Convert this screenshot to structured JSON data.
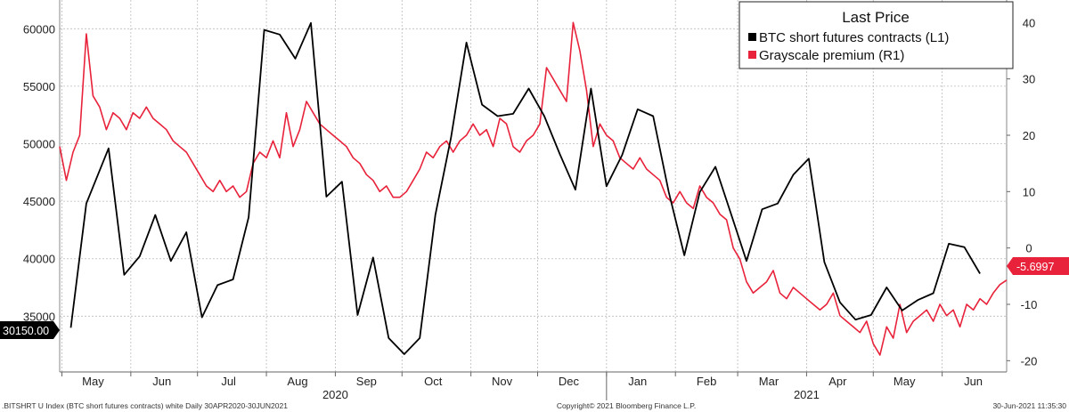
{
  "chart_data": {
    "type": "line",
    "legend": {
      "title": "Last Price",
      "placement": "top-right",
      "entries": [
        {
          "label": "BTC short futures contracts  (L1)",
          "color": "#000000"
        },
        {
          "label": "Grayscale premium  (R1)",
          "color": "#e8223a"
        }
      ]
    },
    "left_axis": {
      "range": [
        30150,
        62500
      ],
      "ticks": [
        "60000",
        "55000",
        "50000",
        "45000",
        "40000",
        "35000"
      ]
    },
    "right_axis": {
      "range": [
        -22,
        44
      ],
      "ticks": [
        "40",
        "30",
        "20",
        "10",
        "0",
        "-10",
        "-20"
      ]
    },
    "x_axis": {
      "range": [
        "2020-04-30",
        "2021-06-30"
      ],
      "month_labels": [
        "May",
        "Jun",
        "Jul",
        "Aug",
        "Sep",
        "Oct",
        "Nov",
        "Dec",
        "Jan",
        "Feb",
        "Mar",
        "Apr",
        "May",
        "Jun"
      ],
      "month_dates": [
        "2020-05-15",
        "2020-06-15",
        "2020-07-15",
        "2020-08-15",
        "2020-09-15",
        "2020-10-15",
        "2020-11-15",
        "2020-12-15",
        "2021-01-15",
        "2021-02-15",
        "2021-03-15",
        "2021-04-15",
        "2021-05-15",
        "2021-06-15"
      ],
      "year_labels": [
        "2020",
        "2021"
      ],
      "year_dates": [
        "2020-09-01",
        "2021-04-01"
      ]
    },
    "grid": true,
    "series": [
      {
        "name": "BTC short futures contracts  (L1)",
        "axis": "left",
        "color": "#000000",
        "x": [
          "2020-05-05",
          "2020-05-12",
          "2020-05-22",
          "2020-05-29",
          "2020-06-05",
          "2020-06-12",
          "2020-06-19",
          "2020-06-26",
          "2020-07-03",
          "2020-07-10",
          "2020-07-17",
          "2020-07-24",
          "2020-07-31",
          "2020-08-07",
          "2020-08-14",
          "2020-08-21",
          "2020-08-28",
          "2020-09-04",
          "2020-09-11",
          "2020-09-18",
          "2020-09-25",
          "2020-10-02",
          "2020-10-09",
          "2020-10-16",
          "2020-10-23",
          "2020-10-30",
          "2020-11-06",
          "2020-11-13",
          "2020-11-20",
          "2020-11-27",
          "2020-12-04",
          "2020-12-11",
          "2020-12-18",
          "2020-12-25",
          "2021-01-01",
          "2021-01-08",
          "2021-01-15",
          "2021-01-22",
          "2021-01-29",
          "2021-02-05",
          "2021-02-12",
          "2021-02-19",
          "2021-02-26",
          "2021-03-05",
          "2021-03-12",
          "2021-03-19",
          "2021-03-26",
          "2021-04-02",
          "2021-04-09",
          "2021-04-16",
          "2021-04-23",
          "2021-04-30",
          "2021-05-07",
          "2021-05-14",
          "2021-05-21",
          "2021-05-28",
          "2021-06-04",
          "2021-06-11",
          "2021-06-18"
        ],
        "y": [
          34000,
          44800,
          49600,
          38600,
          40200,
          43800,
          39800,
          42300,
          34900,
          37700,
          38200,
          43600,
          59900,
          59500,
          57400,
          60500,
          45400,
          46700,
          35100,
          40100,
          33100,
          31700,
          33100,
          43800,
          50500,
          58800,
          53400,
          52400,
          52600,
          54800,
          52400,
          49100,
          46000,
          54800,
          46300,
          49000,
          53000,
          52400,
          45800,
          40300,
          45800,
          48000,
          43900,
          39800,
          44300,
          44800,
          47300,
          48700,
          39700,
          36200,
          34700,
          35100,
          37500,
          35500,
          36400,
          37000,
          41300,
          41000,
          38700
        ]
      },
      {
        "name": "Grayscale premium  (R1)",
        "axis": "right",
        "color": "#e8223a",
        "x": [
          "2020-04-30",
          "2020-05-03",
          "2020-05-06",
          "2020-05-09",
          "2020-05-12",
          "2020-05-15",
          "2020-05-18",
          "2020-05-21",
          "2020-05-24",
          "2020-05-27",
          "2020-05-30",
          "2020-06-02",
          "2020-06-05",
          "2020-06-08",
          "2020-06-11",
          "2020-06-14",
          "2020-06-17",
          "2020-06-20",
          "2020-06-23",
          "2020-06-26",
          "2020-06-29",
          "2020-07-02",
          "2020-07-05",
          "2020-07-08",
          "2020-07-11",
          "2020-07-14",
          "2020-07-17",
          "2020-07-20",
          "2020-07-23",
          "2020-07-26",
          "2020-07-29",
          "2020-08-01",
          "2020-08-04",
          "2020-08-07",
          "2020-08-10",
          "2020-08-13",
          "2020-08-16",
          "2020-08-19",
          "2020-08-22",
          "2020-08-25",
          "2020-08-28",
          "2020-08-31",
          "2020-09-03",
          "2020-09-06",
          "2020-09-09",
          "2020-09-12",
          "2020-09-15",
          "2020-09-18",
          "2020-09-21",
          "2020-09-24",
          "2020-09-27",
          "2020-09-30",
          "2020-10-03",
          "2020-10-06",
          "2020-10-09",
          "2020-10-12",
          "2020-10-15",
          "2020-10-18",
          "2020-10-21",
          "2020-10-24",
          "2020-10-27",
          "2020-10-30",
          "2020-11-02",
          "2020-11-05",
          "2020-11-08",
          "2020-11-11",
          "2020-11-14",
          "2020-11-17",
          "2020-11-20",
          "2020-11-23",
          "2020-11-26",
          "2020-11-29",
          "2020-12-02",
          "2020-12-05",
          "2020-12-08",
          "2020-12-11",
          "2020-12-14",
          "2020-12-17",
          "2020-12-20",
          "2020-12-23",
          "2020-12-26",
          "2020-12-29",
          "2021-01-01",
          "2021-01-04",
          "2021-01-07",
          "2021-01-10",
          "2021-01-13",
          "2021-01-16",
          "2021-01-19",
          "2021-01-22",
          "2021-01-25",
          "2021-01-28",
          "2021-01-31",
          "2021-02-03",
          "2021-02-06",
          "2021-02-09",
          "2021-02-12",
          "2021-02-15",
          "2021-02-18",
          "2021-02-21",
          "2021-02-24",
          "2021-02-27",
          "2021-03-02",
          "2021-03-05",
          "2021-03-08",
          "2021-03-11",
          "2021-03-14",
          "2021-03-17",
          "2021-03-20",
          "2021-03-23",
          "2021-03-26",
          "2021-03-29",
          "2021-04-01",
          "2021-04-04",
          "2021-04-07",
          "2021-04-10",
          "2021-04-13",
          "2021-04-16",
          "2021-04-19",
          "2021-04-22",
          "2021-04-25",
          "2021-04-28",
          "2021-05-01",
          "2021-05-04",
          "2021-05-07",
          "2021-05-10",
          "2021-05-13",
          "2021-05-16",
          "2021-05-19",
          "2021-05-22",
          "2021-05-25",
          "2021-05-28",
          "2021-05-31",
          "2021-06-03",
          "2021-06-06",
          "2021-06-09",
          "2021-06-12",
          "2021-06-15",
          "2021-06-18",
          "2021-06-21",
          "2021-06-24",
          "2021-06-27",
          "2021-06-30"
        ],
        "y": [
          18,
          12,
          17,
          20,
          38,
          27,
          25,
          21,
          24,
          23,
          21,
          24,
          23,
          25,
          23,
          22,
          21,
          19,
          18,
          17,
          15,
          13,
          11,
          10,
          12,
          10,
          11,
          9,
          10,
          15,
          17,
          16,
          19,
          16,
          24,
          18,
          21,
          26,
          24,
          22,
          21,
          20,
          19,
          18,
          16,
          15,
          13,
          12,
          10,
          11,
          9,
          9,
          10,
          12,
          14,
          17,
          16,
          18,
          19,
          17,
          19,
          20,
          22,
          20,
          21,
          18,
          23,
          22,
          18,
          17,
          19,
          20,
          22,
          32,
          30,
          28,
          26,
          40,
          35,
          28,
          18,
          22,
          20,
          19,
          16,
          15,
          14,
          16,
          14,
          13,
          12,
          9,
          8,
          10,
          8,
          7,
          11,
          9,
          8,
          6,
          5,
          0,
          -2,
          -6,
          -8,
          -7,
          -6,
          -4,
          -8,
          -9,
          -7,
          -8,
          -9,
          -10,
          -11,
          -10,
          -8,
          -12,
          -13,
          -14,
          -15,
          -13,
          -17,
          -19,
          -14,
          -16,
          -10,
          -15,
          -13,
          -12,
          -11,
          -13,
          -10,
          -12,
          -11,
          -14,
          -10,
          -11,
          -9,
          -10,
          -8,
          -6.5,
          -5.6997
        ]
      }
    ],
    "last_value_labels": {
      "left": "30150.00",
      "right": "-5.6997"
    },
    "footer": {
      "left": ".BITSHRT U Index (BTC short futures contracts) white  Daily 30APR2020-30JUN2021",
      "center": "Copyright© 2021 Bloomberg Finance L.P.",
      "right": "30-Jun-2021 11:35:30"
    }
  }
}
